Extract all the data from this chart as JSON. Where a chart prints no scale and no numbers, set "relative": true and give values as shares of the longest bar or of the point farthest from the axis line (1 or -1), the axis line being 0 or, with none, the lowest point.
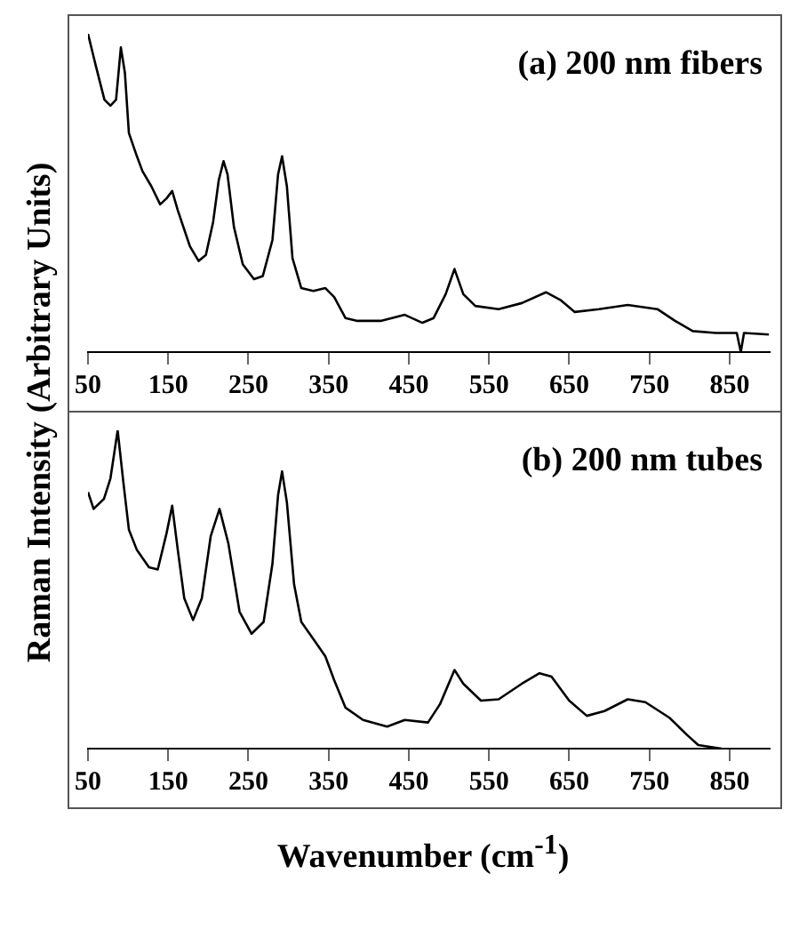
{
  "chart_data": [
    {
      "type": "line",
      "title": "(a) 200 nm fibers",
      "ylabel": "Raman Intensity (Arbitrary Units)",
      "relative": true,
      "grid": false,
      "legend": false,
      "marker": "none",
      "line_style": "solid",
      "xlim": [
        50,
        900
      ],
      "xticks": [
        50,
        150,
        250,
        350,
        450,
        550,
        650,
        750,
        850
      ],
      "series": [
        {
          "color": "#000000",
          "x": [
            50,
            60,
            70.5,
            78,
            85,
            91,
            96,
            101,
            111,
            118,
            129,
            140,
            148,
            155,
            162,
            177,
            188,
            197,
            206,
            213,
            219,
            224,
            232,
            243,
            257,
            268,
            280,
            287,
            292,
            298,
            305,
            316,
            331,
            346,
            357,
            371,
            386,
            415,
            445,
            467,
            481,
            496,
            507,
            518,
            533,
            562,
            591,
            621,
            639,
            657,
            687,
            723,
            760,
            782,
            804,
            833,
            859,
            864,
            868,
            899
          ],
          "values": [
            1.0,
            0.897,
            0.793,
            0.774,
            0.793,
            0.957,
            0.878,
            0.688,
            0.615,
            0.568,
            0.521,
            0.464,
            0.483,
            0.506,
            0.445,
            0.333,
            0.286,
            0.305,
            0.408,
            0.539,
            0.6,
            0.558,
            0.393,
            0.276,
            0.229,
            0.239,
            0.352,
            0.558,
            0.615,
            0.521,
            0.295,
            0.201,
            0.192,
            0.201,
            0.173,
            0.107,
            0.098,
            0.098,
            0.117,
            0.092,
            0.107,
            0.182,
            0.261,
            0.182,
            0.145,
            0.135,
            0.154,
            0.188,
            0.164,
            0.126,
            0.135,
            0.148,
            0.135,
            0.098,
            0.066,
            0.06,
            0.06,
            0.0,
            0.06,
            0.055
          ]
        }
      ]
    },
    {
      "type": "line",
      "title": "(b) 200 nm tubes",
      "xlabel": "Wavenumber (cm$^{-1}$)",
      "relative": true,
      "grid": false,
      "legend": false,
      "marker": "none",
      "line_style": "solid",
      "xlim": [
        50,
        900
      ],
      "xticks": [
        50,
        150,
        250,
        350,
        450,
        550,
        650,
        750,
        850
      ],
      "series": [
        {
          "color": "#000000",
          "x": [
            50,
            57,
            70,
            78,
            87,
            94,
            101,
            111,
            126,
            137,
            148,
            155,
            162,
            170,
            181,
            192,
            203,
            214,
            225,
            239,
            254,
            269,
            280,
            287,
            292,
            298,
            307,
            316,
            331,
            346,
            357,
            371,
            393,
            423,
            445,
            474,
            489,
            507,
            518,
            540,
            562,
            591,
            613,
            628,
            650,
            672,
            694,
            723,
            745,
            775,
            797,
            811,
            840
          ],
          "values": [
            0.806,
            0.753,
            0.785,
            0.849,
            1.0,
            0.839,
            0.688,
            0.624,
            0.57,
            0.563,
            0.677,
            0.763,
            0.624,
            0.473,
            0.404,
            0.473,
            0.667,
            0.753,
            0.645,
            0.43,
            0.361,
            0.398,
            0.581,
            0.796,
            0.871,
            0.774,
            0.516,
            0.398,
            0.344,
            0.29,
            0.215,
            0.129,
            0.09,
            0.069,
            0.09,
            0.082,
            0.14,
            0.247,
            0.204,
            0.151,
            0.155,
            0.204,
            0.237,
            0.226,
            0.151,
            0.103,
            0.118,
            0.155,
            0.146,
            0.097,
            0.043,
            0.011,
            0
          ]
        }
      ]
    }
  ]
}
